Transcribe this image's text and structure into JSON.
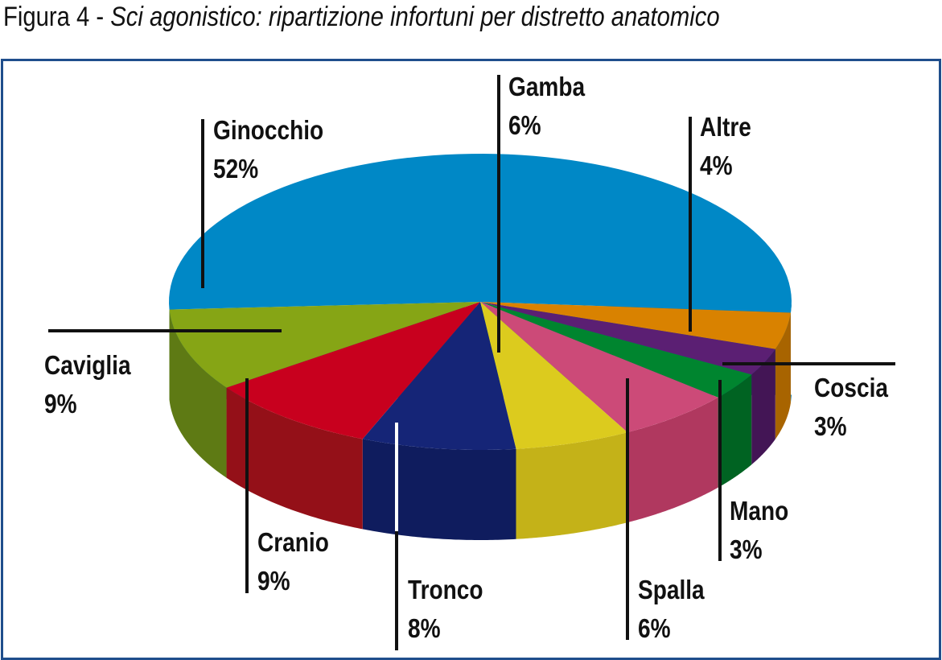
{
  "title": {
    "prefix": "Figura 4 - ",
    "italic": "Sci agonistico: ripartizione infortuni per distretto anatomico"
  },
  "chart_data": {
    "type": "pie",
    "title": "Sci agonistico: ripartizione infortuni per distretto anatomico",
    "slices": [
      {
        "label": "Ginocchio",
        "value": 52,
        "text": "52%",
        "color": "#0088c6",
        "side": "#006a9c"
      },
      {
        "label": "Altre",
        "value": 4,
        "text": "4%",
        "color": "#d98200",
        "side": "#a86400"
      },
      {
        "label": "Coscia",
        "value": 3,
        "text": "3%",
        "color": "#5b1f73",
        "side": "#431555"
      },
      {
        "label": "Mano",
        "value": 3,
        "text": "3%",
        "color": "#00852f",
        "side": "#006322"
      },
      {
        "label": "Spalla",
        "value": 6,
        "text": "6%",
        "color": "#cc4a78",
        "side": "#b0385f"
      },
      {
        "label": "Gamba",
        "value": 6,
        "text": "6%",
        "color": "#dccb1e",
        "side": "#c4b218"
      },
      {
        "label": "Tronco",
        "value": 8,
        "text": "8%",
        "color": "#152577",
        "side": "#0f1c5e"
      },
      {
        "label": "Cranio",
        "value": 9,
        "text": "9%",
        "color": "#c8001e",
        "side": "#941018"
      },
      {
        "label": "Caviglia",
        "value": 9,
        "text": "9%",
        "color": "#86a515",
        "side": "#5e7a14"
      }
    ]
  }
}
